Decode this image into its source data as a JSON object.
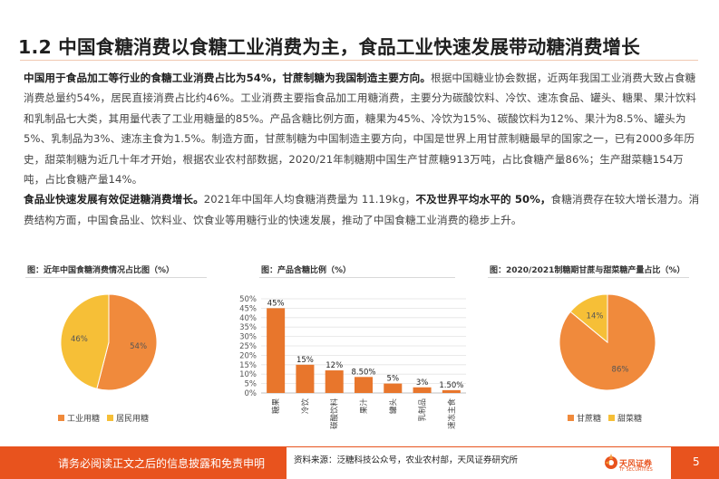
{
  "title": "1.2 中国食糖消费以食糖工业消费为主，食品工业快速发展带动糖消费增长",
  "paragraph1": {
    "bold": "中国用于食品加工等行业的食糖工业消费占比为54%，甘蔗制糖为我国制造主要方向。",
    "text": "根据中国糖业协会数据，近两年我国工业消费大致占食糖消费总量约54%，居民直接消费占比约46%。工业消费主要指食品加工用糖消费，主要分为碳酸饮料、冷饮、速冻食品、罐头、糖果、果汁饮料和乳制品七大类，其用量代表了工业用糖量的85%。产品含糖比例方面，糖果为45%、冷饮为15%、碳酸饮料为12%、果汁为8.5%、罐头为5%、乳制品为3%、速冻主食为1.5%。制造方面，甘蔗制糖为中国制造主要方向，中国是世界上用甘蔗制糖最早的国家之一，已有2000多年历史，甜菜制糖为近几十年才开始，根据农业农村部数据，2020/21年制糖期中国生产甘蔗糖913万吨，占比食糖产量86%；生产甜菜糖154万吨，占比食糖产量14%。"
  },
  "paragraph2": {
    "bold": "食品业快速发展有效促进糖消费增长。",
    "text1": "2021年中国年人均食糖消费量为 11.19kg，",
    "bold2": "不及世界平均水平的 50%，",
    "text2": "食糖消费存在较大增长潜力。消费结构方面，中国食品业、饮料业、饮食业等用糖行业的快速发展，推动了中国食糖工业消费的稳步上升。"
  },
  "chart1_title": "图：近年中国食糖消费情况占比图（%）",
  "chart2_title": "图：产品含糖比例（%）",
  "chart3_title": "图：2020/2021制糖期甘蔗与甜菜糖产量占比（%）",
  "chart_data": [
    {
      "type": "pie",
      "title": "图：近年中国食糖消费情况占比图（%）",
      "labels": [
        "工业用糖",
        "居民用糖"
      ],
      "values": [
        54,
        46
      ],
      "value_labels": [
        "54%",
        "46%"
      ],
      "colors": [
        "#f08a3c",
        "#f6bf37"
      ],
      "legend": "bottom"
    },
    {
      "type": "bar",
      "title": "图：产品含糖比例（%）",
      "categories": [
        "糖果",
        "冷饮",
        "碳酸饮料",
        "果汁",
        "罐头",
        "乳制品",
        "速冻主食"
      ],
      "values": [
        45,
        15,
        12,
        8.5,
        5,
        3,
        1.5
      ],
      "value_labels": [
        "45%",
        "15%",
        "12%",
        "8.50%",
        "5%",
        "3%",
        "1.50%"
      ],
      "ylim": [
        0,
        50
      ],
      "yticks": [
        "0%",
        "5%",
        "10%",
        "15%",
        "20%",
        "25%",
        "30%",
        "35%",
        "40%",
        "45%",
        "50%"
      ],
      "color": "#e8762c",
      "grid": true
    },
    {
      "type": "pie",
      "title": "图：2020/2021制糖期甘蔗与甜菜糖产量占比（%）",
      "labels": [
        "甘蔗糖",
        "甜菜糖"
      ],
      "values": [
        86,
        14
      ],
      "value_labels": [
        "86%",
        "14%"
      ],
      "colors": [
        "#f08a3c",
        "#f6bf37"
      ],
      "legend": "bottom"
    }
  ],
  "footer": {
    "disclaimer": "请务必阅读正文之后的信息披露和免责申明",
    "source": "资料来源：泛糖科技公众号，农业农村部，天风证券研究所",
    "logo_text": "天风证券",
    "logo_sub": "TF SECURITIES",
    "page": "5"
  },
  "colors": {
    "accent": "#e8531e",
    "pie_main": "#f08a3c",
    "pie_minor": "#f6bf37",
    "bar": "#e8762c"
  }
}
